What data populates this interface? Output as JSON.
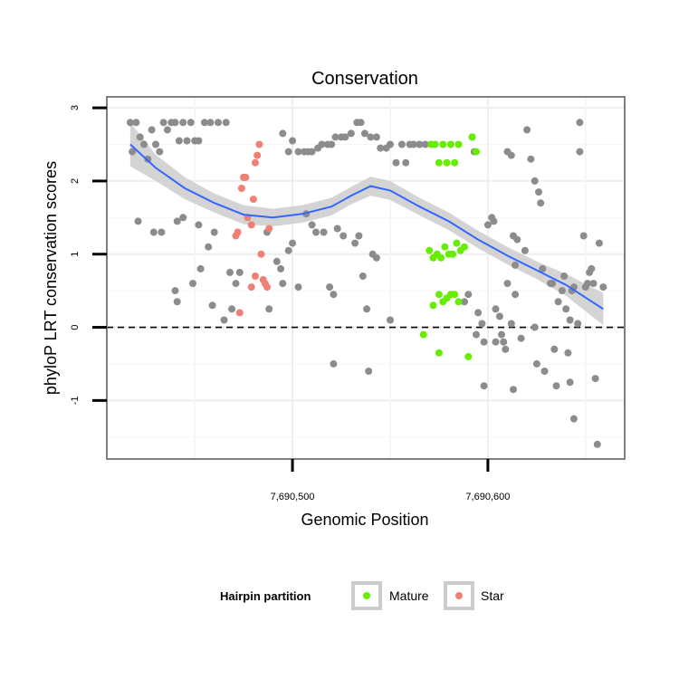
{
  "chart_data": {
    "type": "scatter",
    "title": "Conservation",
    "xlabel": "Genomic Position",
    "ylabel": "phyloP LRT conservation scores",
    "xlim": [
      7690405,
      7690670
    ],
    "ylim": [
      -1.8,
      3.15
    ],
    "x_ticks": [
      {
        "value": 7690500,
        "label": "7,690,500"
      },
      {
        "value": 7690600,
        "label": "7,690,600"
      }
    ],
    "y_ticks": [
      {
        "value": -1,
        "label": "-1"
      },
      {
        "value": 0,
        "label": "0"
      },
      {
        "value": 1,
        "label": "1"
      },
      {
        "value": 2,
        "label": "2"
      },
      {
        "value": 3,
        "label": "3"
      }
    ],
    "grid": true,
    "reference_line": {
      "y": 0,
      "style": "dashed"
    },
    "legend": {
      "title": "Hairpin partition",
      "position": "bottom",
      "entries": [
        {
          "label": "Mature",
          "color": "#66ee00"
        },
        {
          "label": "Star",
          "color": "#f07f74"
        }
      ]
    },
    "colors": {
      "other": "#8c8c8c",
      "Mature": "#66ee00",
      "Star": "#f07f74",
      "smooth": "#3366ff",
      "ribbon": "#cccccc"
    },
    "series": [
      {
        "name": "",
        "color": "#8c8c8c",
        "points": [
          [
            7690417,
            2.8
          ],
          [
            7690420,
            2.8
          ],
          [
            7690422,
            2.6
          ],
          [
            7690424,
            2.5
          ],
          [
            7690426,
            2.3
          ],
          [
            7690428,
            2.7
          ],
          [
            7690430,
            2.5
          ],
          [
            7690432,
            2.4
          ],
          [
            7690434,
            2.8
          ],
          [
            7690436,
            2.7
          ],
          [
            7690438,
            2.8
          ],
          [
            7690440,
            2.8
          ],
          [
            7690442,
            2.55
          ],
          [
            7690444,
            2.8
          ],
          [
            7690446,
            2.55
          ],
          [
            7690448,
            2.8
          ],
          [
            7690450,
            2.55
          ],
          [
            7690452,
            2.55
          ],
          [
            7690455,
            2.8
          ],
          [
            7690458,
            2.8
          ],
          [
            7690462,
            2.8
          ],
          [
            7690466,
            2.8
          ],
          [
            7690418,
            2.4
          ],
          [
            7690421,
            1.45
          ],
          [
            7690429,
            1.3
          ],
          [
            7690433,
            1.3
          ],
          [
            7690441,
            1.45
          ],
          [
            7690444,
            1.5
          ],
          [
            7690453,
            0.8
          ],
          [
            7690459,
            0.3
          ],
          [
            7690465,
            0.1
          ],
          [
            7690469,
            0.25
          ],
          [
            7690440,
            0.5
          ],
          [
            7690441,
            0.35
          ],
          [
            7690449,
            0.6
          ],
          [
            7690452,
            1.4
          ],
          [
            7690457,
            1.1
          ],
          [
            7690460,
            1.3
          ],
          [
            7690468,
            0.75
          ],
          [
            7690473,
            0.75
          ],
          [
            7690471,
            0.6
          ],
          [
            7690487,
            1.3
          ],
          [
            7690492,
            0.9
          ],
          [
            7690494,
            0.8
          ],
          [
            7690495,
            0.6
          ],
          [
            7690498,
            1.05
          ],
          [
            7690500,
            1.15
          ],
          [
            7690503,
            0.55
          ],
          [
            7690488,
            0.25
          ],
          [
            7690495,
            2.65
          ],
          [
            7690498,
            2.4
          ],
          [
            7690500,
            2.55
          ],
          [
            7690503,
            2.4
          ],
          [
            7690506,
            2.4
          ],
          [
            7690508,
            2.4
          ],
          [
            7690510,
            2.4
          ],
          [
            7690513,
            2.45
          ],
          [
            7690515,
            2.5
          ],
          [
            7690518,
            2.5
          ],
          [
            7690520,
            2.5
          ],
          [
            7690522,
            2.6
          ],
          [
            7690525,
            2.6
          ],
          [
            7690527,
            2.6
          ],
          [
            7690530,
            2.65
          ],
          [
            7690533,
            2.8
          ],
          [
            7690535,
            2.8
          ],
          [
            7690537,
            2.65
          ],
          [
            7690540,
            2.6
          ],
          [
            7690543,
            2.6
          ],
          [
            7690545,
            2.45
          ],
          [
            7690548,
            2.45
          ],
          [
            7690550,
            2.5
          ],
          [
            7690553,
            2.25
          ],
          [
            7690556,
            2.5
          ],
          [
            7690558,
            2.25
          ],
          [
            7690560,
            2.5
          ],
          [
            7690562,
            2.5
          ],
          [
            7690565,
            2.5
          ],
          [
            7690568,
            2.5
          ],
          [
            7690507,
            1.55
          ],
          [
            7690510,
            1.4
          ],
          [
            7690512,
            1.3
          ],
          [
            7690516,
            1.3
          ],
          [
            7690519,
            0.55
          ],
          [
            7690521,
            0.45
          ],
          [
            7690521,
            -0.5
          ],
          [
            7690523,
            1.35
          ],
          [
            7690526,
            1.25
          ],
          [
            7690532,
            1.15
          ],
          [
            7690534,
            1.25
          ],
          [
            7690536,
            0.7
          ],
          [
            7690538,
            0.25
          ],
          [
            7690539,
            -0.6
          ],
          [
            7690541,
            1.0
          ],
          [
            7690543,
            0.95
          ],
          [
            7690550,
            0.1
          ],
          [
            7690588,
            0.35
          ],
          [
            7690590,
            0.45
          ],
          [
            7690592,
            2.6
          ],
          [
            7690593,
            2.4
          ],
          [
            7690594,
            -0.1
          ],
          [
            7690595,
            0.2
          ],
          [
            7690597,
            0.05
          ],
          [
            7690598,
            -0.2
          ],
          [
            7690598,
            -0.8
          ],
          [
            7690600,
            1.4
          ],
          [
            7690602,
            1.5
          ],
          [
            7690603,
            1.45
          ],
          [
            7690604,
            0.25
          ],
          [
            7690604,
            -0.2
          ],
          [
            7690606,
            0.15
          ],
          [
            7690607,
            -0.1
          ],
          [
            7690608,
            -0.2
          ],
          [
            7690609,
            -0.3
          ],
          [
            7690610,
            0.6
          ],
          [
            7690610,
            2.4
          ],
          [
            7690612,
            2.35
          ],
          [
            7690612,
            0.05
          ],
          [
            7690613,
            1.25
          ],
          [
            7690613,
            -0.85
          ],
          [
            7690614,
            0.45
          ],
          [
            7690614,
            0.85
          ],
          [
            7690615,
            1.2
          ],
          [
            7690617,
            -0.15
          ],
          [
            7690619,
            1.05
          ],
          [
            7690620,
            2.7
          ],
          [
            7690622,
            2.3
          ],
          [
            7690624,
            2.0
          ],
          [
            7690624,
            0.0
          ],
          [
            7690625,
            -0.5
          ],
          [
            7690626,
            1.85
          ],
          [
            7690627,
            1.7
          ],
          [
            7690628,
            0.8
          ],
          [
            7690629,
            -0.6
          ],
          [
            7690632,
            0.6
          ],
          [
            7690633,
            0.6
          ],
          [
            7690634,
            -0.3
          ],
          [
            7690635,
            -0.8
          ],
          [
            7690636,
            0.35
          ],
          [
            7690638,
            0.5
          ],
          [
            7690639,
            0.7
          ],
          [
            7690640,
            0.25
          ],
          [
            7690641,
            -0.35
          ],
          [
            7690642,
            -0.75
          ],
          [
            7690642,
            0.1
          ],
          [
            7690643,
            0.5
          ],
          [
            7690644,
            0.55
          ],
          [
            7690644,
            -1.25
          ],
          [
            7690646,
            0.05
          ],
          [
            7690647,
            2.4
          ],
          [
            7690647,
            2.8
          ],
          [
            7690649,
            1.25
          ],
          [
            7690650,
            0.55
          ],
          [
            7690651,
            0.6
          ],
          [
            7690652,
            0.75
          ],
          [
            7690653,
            0.8
          ],
          [
            7690654,
            0.6
          ],
          [
            7690655,
            -0.7
          ],
          [
            7690656,
            -1.6
          ],
          [
            7690657,
            1.15
          ],
          [
            7690659,
            0.55
          ]
        ]
      },
      {
        "name": "Mature",
        "color": "#66ee00",
        "points": [
          [
            7690571,
            2.5
          ],
          [
            7690573,
            2.5
          ],
          [
            7690575,
            2.25
          ],
          [
            7690577,
            2.5
          ],
          [
            7690579,
            2.25
          ],
          [
            7690581,
            2.5
          ],
          [
            7690583,
            2.25
          ],
          [
            7690585,
            2.5
          ],
          [
            7690592,
            2.6
          ],
          [
            7690594,
            2.4
          ],
          [
            7690570,
            1.05
          ],
          [
            7690572,
            0.95
          ],
          [
            7690574,
            1.0
          ],
          [
            7690576,
            0.95
          ],
          [
            7690578,
            1.1
          ],
          [
            7690580,
            1.0
          ],
          [
            7690582,
            1.0
          ],
          [
            7690584,
            1.15
          ],
          [
            7690586,
            1.05
          ],
          [
            7690588,
            1.1
          ],
          [
            7690572,
            0.3
          ],
          [
            7690575,
            0.45
          ],
          [
            7690577,
            0.35
          ],
          [
            7690579,
            0.4
          ],
          [
            7690581,
            0.45
          ],
          [
            7690567,
            -0.1
          ],
          [
            7690575,
            -0.35
          ],
          [
            7690590,
            -0.4
          ],
          [
            7690585,
            0.35
          ],
          [
            7690583,
            0.45
          ]
        ]
      },
      {
        "name": "Star",
        "color": "#f07f74",
        "points": [
          [
            7690472,
            1.3
          ],
          [
            7690474,
            1.9
          ],
          [
            7690475,
            2.05
          ],
          [
            7690476,
            2.05
          ],
          [
            7690477,
            1.5
          ],
          [
            7690479,
            1.4
          ],
          [
            7690480,
            1.75
          ],
          [
            7690481,
            2.25
          ],
          [
            7690482,
            2.35
          ],
          [
            7690483,
            2.5
          ],
          [
            7690484,
            1.0
          ],
          [
            7690485,
            0.65
          ],
          [
            7690486,
            0.6
          ],
          [
            7690487,
            0.55
          ],
          [
            7690488,
            1.35
          ],
          [
            7690479,
            0.55
          ],
          [
            7690481,
            0.7
          ],
          [
            7690473,
            0.2
          ],
          [
            7690471,
            1.25
          ]
        ]
      }
    ],
    "smooth": [
      [
        7690417,
        2.5
      ],
      [
        7690430,
        2.18
      ],
      [
        7690445,
        1.9
      ],
      [
        7690460,
        1.7
      ],
      [
        7690475,
        1.54
      ],
      [
        7690490,
        1.5
      ],
      [
        7690505,
        1.55
      ],
      [
        7690520,
        1.65
      ],
      [
        7690530,
        1.8
      ],
      [
        7690540,
        1.93
      ],
      [
        7690550,
        1.87
      ],
      [
        7690565,
        1.65
      ],
      [
        7690580,
        1.45
      ],
      [
        7690595,
        1.2
      ],
      [
        7690610,
        0.98
      ],
      [
        7690625,
        0.78
      ],
      [
        7690640,
        0.58
      ],
      [
        7690659,
        0.25
      ]
    ],
    "ribbon_halfwidth": [
      0.3,
      0.18,
      0.15,
      0.13,
      0.13,
      0.12,
      0.12,
      0.12,
      0.12,
      0.13,
      0.13,
      0.12,
      0.12,
      0.12,
      0.12,
      0.12,
      0.15,
      0.22
    ]
  }
}
